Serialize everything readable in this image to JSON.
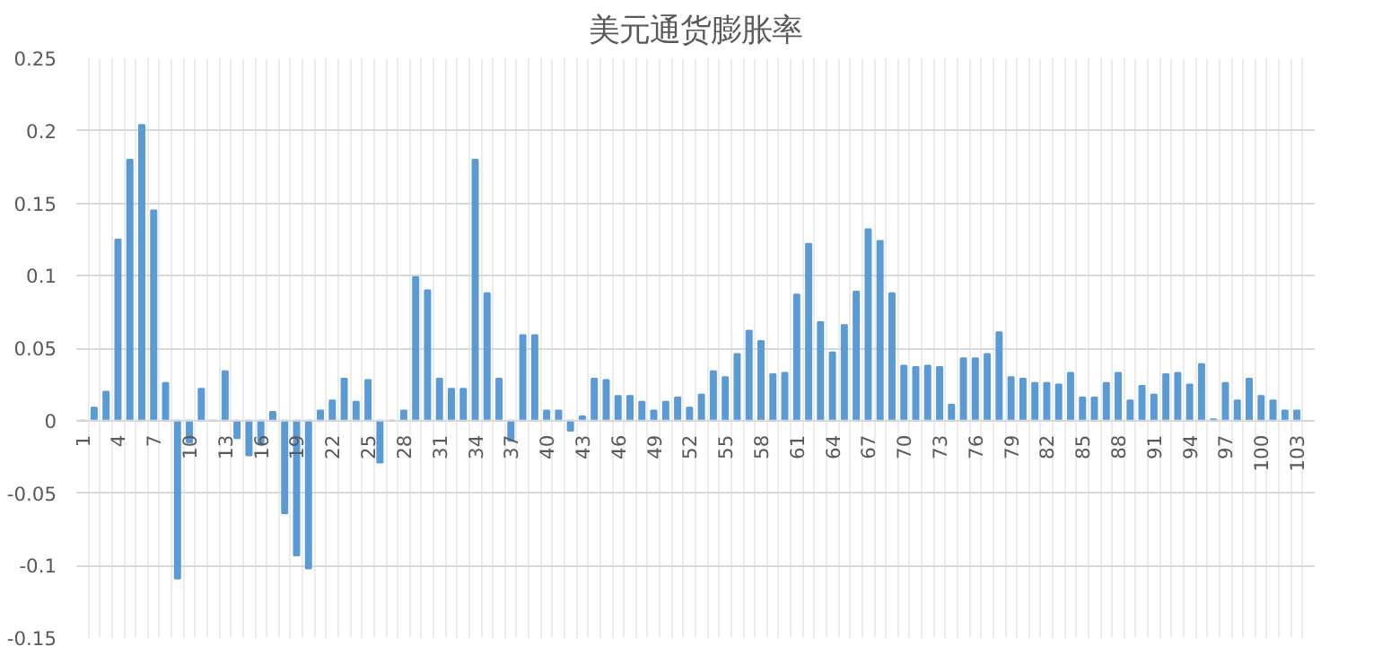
{
  "chart_data": {
    "type": "bar",
    "title": "美元通货膨胀率",
    "categories": [
      "1",
      null,
      null,
      "4",
      null,
      null,
      "7",
      null,
      null,
      "10",
      null,
      null,
      "13",
      null,
      null,
      "16",
      null,
      null,
      "19",
      null,
      null,
      "22",
      null,
      null,
      "25",
      null,
      null,
      "28",
      null,
      null,
      "31",
      null,
      null,
      "34",
      null,
      null,
      "37",
      null,
      null,
      "40",
      null,
      null,
      "43",
      null,
      null,
      "46",
      null,
      null,
      "49",
      null,
      null,
      "52",
      null,
      null,
      "55",
      null,
      null,
      "58",
      null,
      null,
      "61",
      null,
      null,
      "64",
      null,
      null,
      "67",
      null,
      null,
      "70",
      null,
      null,
      "73",
      null,
      null,
      "76",
      null,
      null,
      "79",
      null,
      null,
      "82",
      null,
      null,
      "85",
      null,
      null,
      "88",
      null,
      null,
      "91",
      null,
      null,
      "94",
      null,
      null,
      "97",
      null,
      null,
      "100",
      null,
      null,
      "103"
    ],
    "series": [
      {
        "color": "#5b9bd5",
        "values": [
          0,
          0.009,
          0.02,
          0.125,
          0.18,
          0.204,
          0.145,
          0.026,
          -0.109,
          -0.015,
          0.022,
          0,
          0.034,
          -0.012,
          -0.024,
          -0.016,
          0.006,
          -0.064,
          -0.093,
          -0.102,
          0.007,
          0.014,
          0.029,
          0.013,
          0.028,
          -0.029,
          0,
          0.007,
          0.099,
          0.09,
          0.029,
          0.022,
          0.022,
          0.18,
          0.088,
          0.029,
          -0.014,
          0.059,
          0.059,
          0.007,
          0.007,
          -0.007,
          0.003,
          0.029,
          0.028,
          0.017,
          0.017,
          0.013,
          0.007,
          0.013,
          0.016,
          0.009,
          0.018,
          0.034,
          0.03,
          0.046,
          0.062,
          0.055,
          0.032,
          0.033,
          0.087,
          0.122,
          0.068,
          0.047,
          0.066,
          0.089,
          0.132,
          0.124,
          0.088,
          0.038,
          0.037,
          0.038,
          0.037,
          0.011,
          0.043,
          0.043,
          0.046,
          0.061,
          0.03,
          0.029,
          0.026,
          0.026,
          0.025,
          0.033,
          0.016,
          0.016,
          0.026,
          0.033,
          0.014,
          0.024,
          0.018,
          0.032,
          0.033,
          0.025,
          0.039,
          0.001,
          0.026,
          0.014,
          0.029,
          0.017,
          0.014,
          0.007,
          0.007
        ]
      }
    ],
    "ylim": [
      -0.15,
      0.25
    ],
    "yticks": [
      -0.15,
      -0.1,
      -0.05,
      0,
      0.05,
      0.1,
      0.15,
      0.2,
      0.25
    ],
    "grid": true
  }
}
